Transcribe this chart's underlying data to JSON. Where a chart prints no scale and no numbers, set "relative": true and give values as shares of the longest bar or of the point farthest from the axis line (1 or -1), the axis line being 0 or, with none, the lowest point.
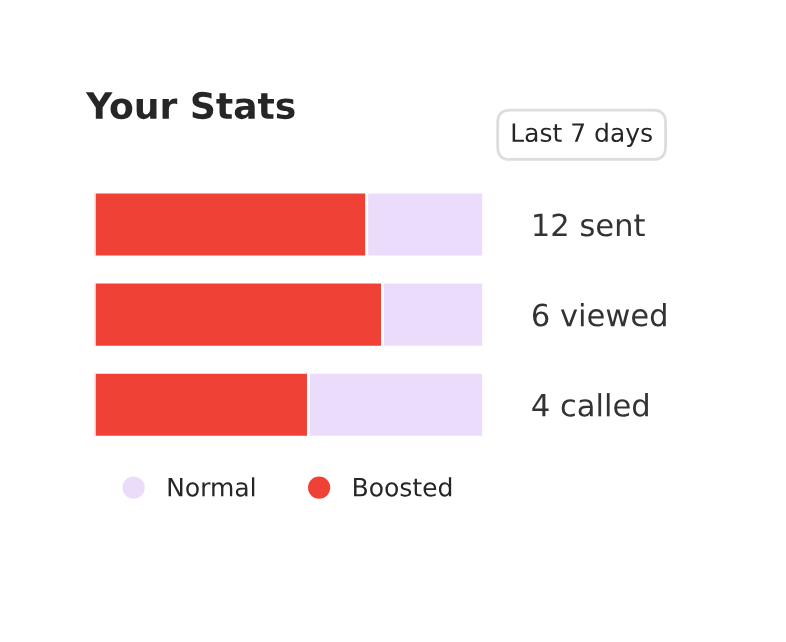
{
  "chart_data": {
    "type": "bar",
    "orientation": "horizontal",
    "stacked": true,
    "relative": true,
    "title": "Your Stats",
    "annotations": [
      "Last 7 days"
    ],
    "categories": [
      "12 sent",
      "6 viewed",
      "4 called"
    ],
    "series": [
      {
        "name": "Boosted",
        "color": "#ef4136",
        "values": [
          0.7,
          0.74,
          0.55
        ]
      },
      {
        "name": "Normal",
        "color": "#ebdcfb",
        "values": [
          0.3,
          0.26,
          0.45
        ]
      }
    ],
    "legend": "bottom left",
    "grid": false
  }
}
